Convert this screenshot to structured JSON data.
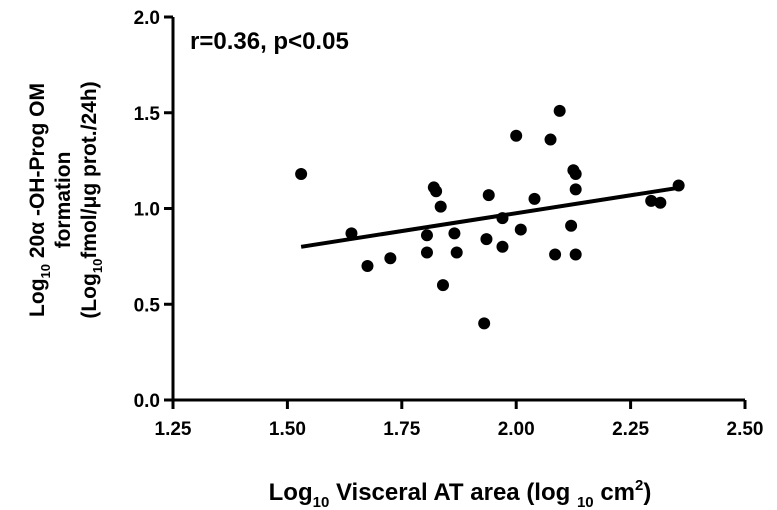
{
  "chart_data": {
    "type": "scatter",
    "title": "",
    "annotation": "r=0.36, p<0.05",
    "xlabel": {
      "parts": [
        {
          "t": "Log",
          "sub": false
        },
        {
          "t": "10",
          "sub": true
        },
        {
          "t": " Visceral AT area (log ",
          "sub": false
        },
        {
          "t": "10",
          "sub": true
        },
        {
          "t": " cm",
          "sub": false
        },
        {
          "t": "2",
          "sup": true
        },
        {
          "t": ")",
          "sub": false
        }
      ]
    },
    "ylabel": {
      "line1": [
        {
          "t": "Log",
          "sub": false
        },
        {
          "t": "10",
          "sub": true
        },
        {
          "t": " 20α -OH-Prog OM",
          "sub": false
        }
      ],
      "line2": [
        {
          "t": "formation",
          "sub": false
        }
      ],
      "line3": [
        {
          "t": "(Log",
          "sub": false
        },
        {
          "t": "10",
          "sub": true
        },
        {
          "t": "fmol/μg prot./24h)",
          "sub": false
        }
      ]
    },
    "xlim": [
      1.25,
      2.5
    ],
    "ylim": [
      0.0,
      2.0
    ],
    "xticks": [
      1.25,
      1.5,
      1.75,
      2.0,
      2.25,
      2.5
    ],
    "xtick_labels": [
      "1.25",
      "1.50",
      "1.75",
      "2.00",
      "2.25",
      "2.50"
    ],
    "yticks": [
      0.0,
      0.5,
      1.0,
      1.5,
      2.0
    ],
    "ytick_labels": [
      "0.0",
      "0.5",
      "1.0",
      "1.5",
      "2.0"
    ],
    "grid": false,
    "legend": "none",
    "marker_color": "#000000",
    "points": [
      {
        "x": 1.53,
        "y": 1.18
      },
      {
        "x": 1.64,
        "y": 0.87
      },
      {
        "x": 1.675,
        "y": 0.7
      },
      {
        "x": 1.725,
        "y": 0.74
      },
      {
        "x": 1.805,
        "y": 0.77
      },
      {
        "x": 1.805,
        "y": 0.86
      },
      {
        "x": 1.82,
        "y": 1.11
      },
      {
        "x": 1.825,
        "y": 1.09
      },
      {
        "x": 1.835,
        "y": 1.01
      },
      {
        "x": 1.84,
        "y": 0.6
      },
      {
        "x": 1.865,
        "y": 0.87
      },
      {
        "x": 1.87,
        "y": 0.77
      },
      {
        "x": 1.93,
        "y": 0.4
      },
      {
        "x": 1.935,
        "y": 0.84
      },
      {
        "x": 1.94,
        "y": 1.07
      },
      {
        "x": 1.97,
        "y": 0.95
      },
      {
        "x": 1.97,
        "y": 0.8
      },
      {
        "x": 2.0,
        "y": 1.38
      },
      {
        "x": 2.01,
        "y": 0.89
      },
      {
        "x": 2.04,
        "y": 1.05
      },
      {
        "x": 2.075,
        "y": 1.36
      },
      {
        "x": 2.085,
        "y": 0.76
      },
      {
        "x": 2.095,
        "y": 1.51
      },
      {
        "x": 2.12,
        "y": 0.91
      },
      {
        "x": 2.125,
        "y": 1.2
      },
      {
        "x": 2.13,
        "y": 1.18
      },
      {
        "x": 2.13,
        "y": 1.1
      },
      {
        "x": 2.13,
        "y": 0.76
      },
      {
        "x": 2.295,
        "y": 1.04
      },
      {
        "x": 2.315,
        "y": 1.03
      },
      {
        "x": 2.355,
        "y": 1.12
      }
    ],
    "regression_line": {
      "x": [
        1.53,
        2.36
      ],
      "y": [
        0.8,
        1.11
      ]
    }
  }
}
